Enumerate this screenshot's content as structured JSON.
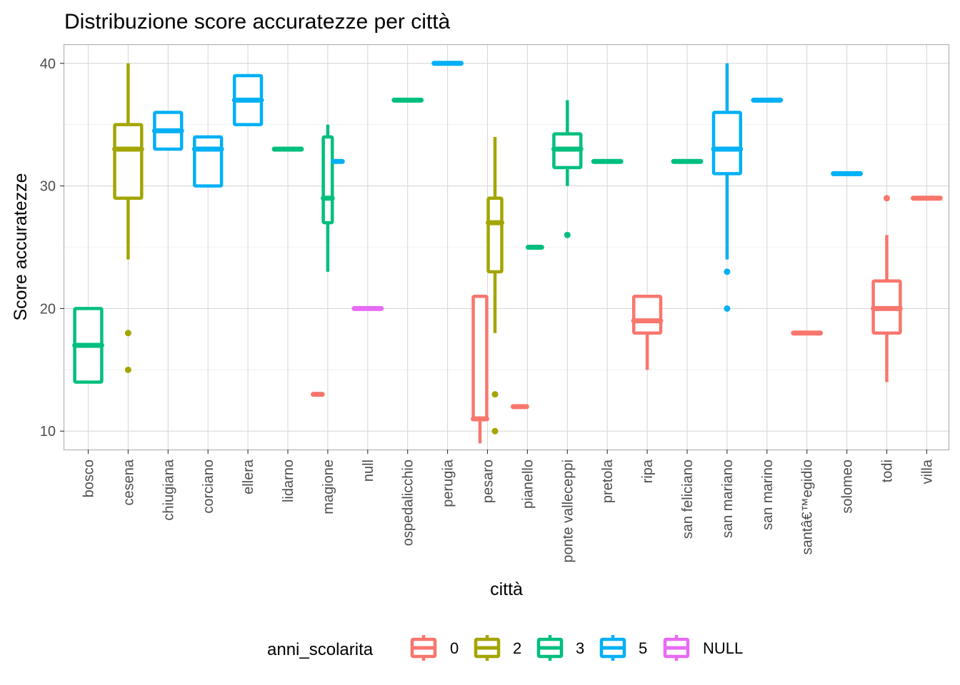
{
  "chart_data": {
    "type": "boxplot",
    "title": "Distribuzione score accuratezze per città",
    "xlabel": "città",
    "ylabel": "Score accuratezze",
    "ylim": [
      8.5,
      41.5
    ],
    "y_ticks": [
      10,
      20,
      30,
      40
    ],
    "grid": true,
    "legend": {
      "title": "anni_scolarita",
      "position": "bottom",
      "entries": [
        {
          "key": "0",
          "label": "0",
          "color": "#F8766D"
        },
        {
          "key": "2",
          "label": "2",
          "color": "#A3A500"
        },
        {
          "key": "3",
          "label": "3",
          "color": "#00BF7D"
        },
        {
          "key": "5",
          "label": "5",
          "color": "#00B0F6"
        },
        {
          "key": "NULL",
          "label": "NULL",
          "color": "#E76BF3"
        }
      ]
    },
    "categories": [
      "bosco",
      "cesena",
      "chiugiana",
      "corciano",
      "ellera",
      "lidarno",
      "magione",
      "null",
      "ospedalicchio",
      "perugia",
      "pesaro",
      "pianello",
      "ponte valleceppi",
      "pretola",
      "ripa",
      "san feliciano",
      "san mariano",
      "san marino",
      "santâ€™egidio",
      "solomeo",
      "todi",
      "villa"
    ],
    "boxes": [
      {
        "category": "bosco",
        "group": "3",
        "n_groups": 1,
        "slot": 0,
        "whisker_low": 14,
        "q1": 14,
        "median": 17,
        "q3": 20,
        "whisker_high": 20,
        "outliers": []
      },
      {
        "category": "cesena",
        "group": "2",
        "n_groups": 1,
        "slot": 0,
        "whisker_low": 24,
        "q1": 29,
        "median": 33,
        "q3": 35,
        "whisker_high": 40,
        "outliers": [
          18,
          15
        ]
      },
      {
        "category": "chiugiana",
        "group": "5",
        "n_groups": 1,
        "slot": 0,
        "whisker_low": 33,
        "q1": 33,
        "median": 34.5,
        "q3": 36,
        "whisker_high": 36,
        "outliers": []
      },
      {
        "category": "corciano",
        "group": "5",
        "n_groups": 1,
        "slot": 0,
        "whisker_low": 30,
        "q1": 30,
        "median": 33,
        "q3": 34,
        "whisker_high": 34,
        "outliers": []
      },
      {
        "category": "ellera",
        "group": "5",
        "n_groups": 1,
        "slot": 0,
        "whisker_low": 35,
        "q1": 35,
        "median": 37,
        "q3": 39,
        "whisker_high": 39,
        "outliers": []
      },
      {
        "category": "lidarno",
        "group": "3",
        "n_groups": 1,
        "slot": 0,
        "whisker_low": 33,
        "q1": 33,
        "median": 33,
        "q3": 33,
        "whisker_high": 33,
        "outliers": []
      },
      {
        "category": "magione",
        "group": "0",
        "n_groups": 3,
        "slot": 0,
        "whisker_low": 13,
        "q1": 13,
        "median": 13,
        "q3": 13,
        "whisker_high": 13,
        "outliers": []
      },
      {
        "category": "magione",
        "group": "3",
        "n_groups": 3,
        "slot": 1,
        "whisker_low": 23,
        "q1": 27,
        "median": 29,
        "q3": 34,
        "whisker_high": 35,
        "outliers": []
      },
      {
        "category": "magione",
        "group": "5",
        "n_groups": 3,
        "slot": 2,
        "whisker_low": 32,
        "q1": 32,
        "median": 32,
        "q3": 32,
        "whisker_high": 32,
        "outliers": []
      },
      {
        "category": "null",
        "group": "NULL",
        "n_groups": 1,
        "slot": 0,
        "whisker_low": 20,
        "q1": 20,
        "median": 20,
        "q3": 20,
        "whisker_high": 20,
        "outliers": []
      },
      {
        "category": "ospedalicchio",
        "group": "3",
        "n_groups": 1,
        "slot": 0,
        "whisker_low": 37,
        "q1": 37,
        "median": 37,
        "q3": 37,
        "whisker_high": 37,
        "outliers": []
      },
      {
        "category": "perugia",
        "group": "5",
        "n_groups": 1,
        "slot": 0,
        "whisker_low": 40,
        "q1": 40,
        "median": 40,
        "q3": 40,
        "whisker_high": 40,
        "outliers": []
      },
      {
        "category": "pesaro",
        "group": "0",
        "n_groups": 2,
        "slot": 0,
        "whisker_low": 9,
        "q1": 11,
        "median": 11,
        "q3": 21,
        "whisker_high": 21,
        "outliers": []
      },
      {
        "category": "pesaro",
        "group": "2",
        "n_groups": 2,
        "slot": 1,
        "whisker_low": 18,
        "q1": 23,
        "median": 27,
        "q3": 29,
        "whisker_high": 34,
        "outliers": [
          13,
          10
        ]
      },
      {
        "category": "pianello",
        "group": "0",
        "n_groups": 2,
        "slot": 0,
        "whisker_low": 12,
        "q1": 12,
        "median": 12,
        "q3": 12,
        "whisker_high": 12,
        "outliers": []
      },
      {
        "category": "pianello",
        "group": "3",
        "n_groups": 2,
        "slot": 1,
        "whisker_low": 25,
        "q1": 25,
        "median": 25,
        "q3": 25,
        "whisker_high": 25,
        "outliers": []
      },
      {
        "category": "ponte valleceppi",
        "group": "3",
        "n_groups": 1,
        "slot": 0,
        "whisker_low": 30,
        "q1": 31.5,
        "median": 33,
        "q3": 34.25,
        "whisker_high": 37,
        "outliers": [
          26
        ]
      },
      {
        "category": "pretola",
        "group": "3",
        "n_groups": 1,
        "slot": 0,
        "whisker_low": 32,
        "q1": 32,
        "median": 32,
        "q3": 32,
        "whisker_high": 32,
        "outliers": []
      },
      {
        "category": "ripa",
        "group": "0",
        "n_groups": 1,
        "slot": 0,
        "whisker_low": 15,
        "q1": 18,
        "median": 19,
        "q3": 21,
        "whisker_high": 21,
        "outliers": []
      },
      {
        "category": "san feliciano",
        "group": "3",
        "n_groups": 1,
        "slot": 0,
        "whisker_low": 32,
        "q1": 32,
        "median": 32,
        "q3": 32,
        "whisker_high": 32,
        "outliers": []
      },
      {
        "category": "san mariano",
        "group": "5",
        "n_groups": 1,
        "slot": 0,
        "whisker_low": 24,
        "q1": 31,
        "median": 33,
        "q3": 36,
        "whisker_high": 40,
        "outliers": [
          23,
          20
        ]
      },
      {
        "category": "san marino",
        "group": "5",
        "n_groups": 1,
        "slot": 0,
        "whisker_low": 37,
        "q1": 37,
        "median": 37,
        "q3": 37,
        "whisker_high": 37,
        "outliers": []
      },
      {
        "category": "santâ€™egidio",
        "group": "0",
        "n_groups": 1,
        "slot": 0,
        "whisker_low": 18,
        "q1": 18,
        "median": 18,
        "q3": 18,
        "whisker_high": 18,
        "outliers": []
      },
      {
        "category": "solomeo",
        "group": "5",
        "n_groups": 1,
        "slot": 0,
        "whisker_low": 31,
        "q1": 31,
        "median": 31,
        "q3": 31,
        "whisker_high": 31,
        "outliers": []
      },
      {
        "category": "todi",
        "group": "0",
        "n_groups": 1,
        "slot": 0,
        "whisker_low": 14,
        "q1": 18,
        "median": 20,
        "q3": 22.25,
        "whisker_high": 26,
        "outliers": [
          29
        ]
      },
      {
        "category": "villa",
        "group": "0",
        "n_groups": 1,
        "slot": 0,
        "whisker_low": 29,
        "q1": 29,
        "median": 29,
        "q3": 29,
        "whisker_high": 29,
        "outliers": []
      }
    ]
  }
}
